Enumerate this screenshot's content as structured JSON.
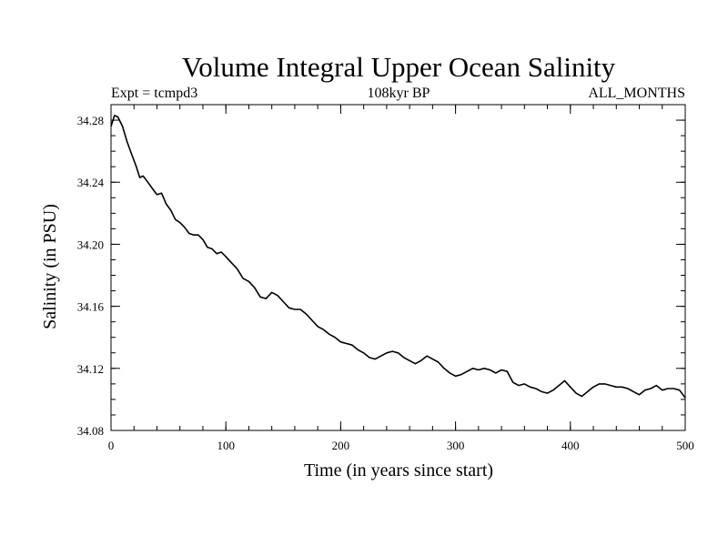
{
  "chart_data": {
    "type": "line",
    "title": "Volume Integral Upper Ocean Salinity",
    "subtitle_left": "Expt = tcmpd3",
    "subtitle_center": "108kyr BP",
    "subtitle_right": "ALL_MONTHS",
    "xlabel": "Time (in years since start)",
    "ylabel": "Salinity (in PSU)",
    "xlim": [
      0,
      500
    ],
    "ylim": [
      34.08,
      34.29
    ],
    "xticks": [
      0,
      100,
      200,
      300,
      400,
      500
    ],
    "xtick_labels": [
      "0",
      "100",
      "200",
      "300",
      "400",
      "500"
    ],
    "yticks": [
      34.08,
      34.12,
      34.16,
      34.2,
      34.24,
      34.28
    ],
    "ytick_labels": [
      "34.08",
      "34.12",
      "34.16",
      "34.20",
      "34.24",
      "34.28"
    ],
    "grid": false,
    "series": [
      {
        "color": "#000000",
        "x": [
          0,
          3,
          6,
          10,
          14,
          18,
          22,
          25,
          28,
          32,
          36,
          40,
          44,
          48,
          52,
          56,
          60,
          64,
          68,
          72,
          76,
          80,
          84,
          88,
          92,
          96,
          100,
          105,
          110,
          115,
          120,
          125,
          130,
          135,
          140,
          145,
          150,
          155,
          160,
          165,
          170,
          175,
          180,
          185,
          190,
          195,
          200,
          205,
          210,
          215,
          220,
          225,
          230,
          235,
          240,
          245,
          250,
          255,
          260,
          265,
          270,
          275,
          280,
          285,
          290,
          295,
          300,
          305,
          310,
          315,
          320,
          325,
          330,
          335,
          340,
          345,
          350,
          355,
          360,
          365,
          370,
          375,
          380,
          385,
          390,
          395,
          400,
          405,
          410,
          415,
          420,
          425,
          430,
          435,
          440,
          445,
          450,
          455,
          460,
          465,
          470,
          475,
          480,
          485,
          490,
          495,
          500
        ],
        "y": [
          34.276,
          34.283,
          34.282,
          34.276,
          34.266,
          34.258,
          34.25,
          34.243,
          34.244,
          34.24,
          34.236,
          34.232,
          34.233,
          34.226,
          34.222,
          34.216,
          34.214,
          34.211,
          34.207,
          34.206,
          34.206,
          34.203,
          34.198,
          34.197,
          34.194,
          34.195,
          34.192,
          34.188,
          34.184,
          34.178,
          34.176,
          34.172,
          34.166,
          34.165,
          34.169,
          34.167,
          34.163,
          34.159,
          34.158,
          34.158,
          34.155,
          34.151,
          34.147,
          34.145,
          34.142,
          34.14,
          34.137,
          34.136,
          34.135,
          34.132,
          34.13,
          34.127,
          34.126,
          34.128,
          34.13,
          34.131,
          34.13,
          34.127,
          34.125,
          34.123,
          34.125,
          34.128,
          34.126,
          34.124,
          34.12,
          34.117,
          34.115,
          34.116,
          34.118,
          34.12,
          34.119,
          34.12,
          34.119,
          34.117,
          34.119,
          34.118,
          34.111,
          34.109,
          34.11,
          34.108,
          34.107,
          34.105,
          34.104,
          34.106,
          34.109,
          34.112,
          34.108,
          34.104,
          34.102,
          34.105,
          34.108,
          34.11,
          34.11,
          34.109,
          34.108,
          34.108,
          34.107,
          34.105,
          34.103,
          34.106,
          34.107,
          34.109,
          34.106,
          34.107,
          34.107,
          34.106,
          34.101
        ]
      }
    ]
  }
}
